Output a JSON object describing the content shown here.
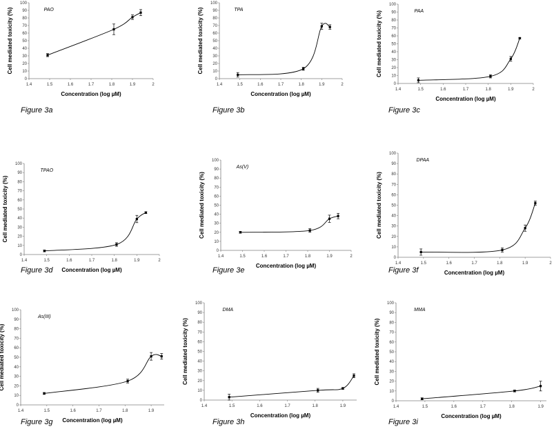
{
  "chart_data": [
    {
      "type": "line",
      "title": "PAO",
      "caption": "Figure 3a",
      "xlabel": "Concentration (log µM)",
      "ylabel": "Cell mediated toxicity (%)",
      "xlim": [
        1.4,
        2
      ],
      "ylim": [
        0,
        100
      ],
      "xticks": [
        "1.4",
        "1.5",
        "1.6",
        "1.7",
        "1.8",
        "1.9",
        "2"
      ],
      "yticks": [
        "0",
        "10",
        "20",
        "30",
        "40",
        "50",
        "60",
        "70",
        "80",
        "90",
        "100"
      ],
      "x": [
        1.49,
        1.81,
        1.9,
        1.94
      ],
      "values": [
        31,
        65,
        81,
        87
      ],
      "errors": [
        2,
        7,
        3,
        4
      ]
    },
    {
      "type": "line",
      "title": "TPA",
      "caption": "Figure 3b",
      "xlabel": "Concentration (log µM)",
      "ylabel": "Cell mediated toxicity (%)",
      "xlim": [
        1.4,
        2
      ],
      "ylim": [
        0,
        100
      ],
      "xticks": [
        "1.4",
        "1.5",
        "1.6",
        "1.7",
        "1.8",
        "1.9",
        "2"
      ],
      "yticks": [
        "0",
        "10",
        "20",
        "30",
        "40",
        "50",
        "60",
        "70",
        "80",
        "90",
        "100"
      ],
      "x": [
        1.49,
        1.81,
        1.9,
        1.94
      ],
      "values": [
        5,
        13,
        69,
        68
      ],
      "errors": [
        3,
        2,
        4,
        3
      ]
    },
    {
      "type": "line",
      "title": "PAA",
      "caption": "Figure 3c",
      "xlabel": "Concentration (log µM)",
      "ylabel": "Cell mediated toxicity (%)",
      "xlim": [
        1.4,
        2
      ],
      "ylim": [
        0,
        100
      ],
      "xticks": [
        "1.4",
        "1.5",
        "1.6",
        "1.7",
        "1.8",
        "1.9",
        "2"
      ],
      "yticks": [
        "0",
        "10",
        "20",
        "30",
        "40",
        "50",
        "60",
        "70",
        "80",
        "90",
        "100"
      ],
      "x": [
        1.49,
        1.81,
        1.9,
        1.94
      ],
      "values": [
        4,
        9,
        31,
        57
      ],
      "errors": [
        3,
        2,
        3,
        1
      ]
    },
    {
      "type": "line",
      "title": "TPAO",
      "caption": "Figure 3d",
      "xlabel": "Concentration (log µM)",
      "ylabel": "Cell mediated toxicity (%)",
      "xlim": [
        1.4,
        2
      ],
      "ylim": [
        0,
        100
      ],
      "xticks": [
        "1.4",
        "1.5",
        "1.6",
        "1.7",
        "1.8",
        "1.9",
        "2"
      ],
      "yticks": [
        "0",
        "10",
        "20",
        "30",
        "40",
        "50",
        "60",
        "70",
        "80",
        "90",
        "100"
      ],
      "x": [
        1.49,
        1.81,
        1.9,
        1.94
      ],
      "values": [
        4,
        11,
        39,
        46
      ],
      "errors": [
        1,
        2,
        4,
        1
      ]
    },
    {
      "type": "line",
      "title": "As(V)",
      "caption": "Figure 3e",
      "xlabel": "Concentration (log µM)",
      "ylabel": "Cell mediated toxicity (%)",
      "xlim": [
        1.4,
        2
      ],
      "ylim": [
        0,
        100
      ],
      "xticks": [
        "1.4",
        "1.5",
        "1.6",
        "1.7",
        "1.8",
        "1.9",
        "2"
      ],
      "yticks": [
        "0",
        "10",
        "20",
        "30",
        "40",
        "50",
        "60",
        "70",
        "80",
        "90",
        "100"
      ],
      "x": [
        1.49,
        1.81,
        1.9,
        1.94
      ],
      "values": [
        20,
        22,
        35,
        38
      ],
      "errors": [
        1,
        2,
        4,
        3
      ]
    },
    {
      "type": "line",
      "title": "DPAA",
      "caption": "Figure 3f",
      "xlabel": "Concentration (log µM)",
      "ylabel": "Cell mediated toxicity (%)",
      "xlim": [
        1.4,
        2
      ],
      "ylim": [
        0,
        100
      ],
      "xticks": [
        "1.4",
        "1.5",
        "1.6",
        "1.7",
        "1.8",
        "1.9",
        "2"
      ],
      "yticks": [
        "0",
        "10",
        "20",
        "30",
        "40",
        "50",
        "60",
        "70",
        "80",
        "90",
        "100"
      ],
      "x": [
        1.49,
        1.81,
        1.9,
        1.94
      ],
      "values": [
        5,
        7,
        28,
        52
      ],
      "errors": [
        3,
        2,
        3,
        2
      ]
    },
    {
      "type": "line",
      "title": "As(III)",
      "caption": "Figure 3g",
      "xlabel": "Concentration (log µM)",
      "ylabel": "Cell mediated toxicity (%)",
      "xlim": [
        1.4,
        1.95
      ],
      "ylim": [
        0,
        100
      ],
      "xticks": [
        "1.4",
        "1.5",
        "1.6",
        "1.7",
        "1.8",
        "1.9"
      ],
      "yticks": [
        "0",
        "10",
        "20",
        "30",
        "40",
        "50",
        "60",
        "70",
        "80",
        "90",
        "100"
      ],
      "x": [
        1.49,
        1.81,
        1.9,
        1.94
      ],
      "values": [
        12,
        25,
        51,
        51
      ],
      "errors": [
        1,
        2,
        4,
        3
      ]
    },
    {
      "type": "line",
      "title": "DMA",
      "caption": "Figure 3h",
      "xlabel": "Concentration (log µM)",
      "ylabel": "Cell mediated toxicity (%)",
      "xlim": [
        1.4,
        1.95
      ],
      "ylim": [
        0,
        100
      ],
      "xticks": [
        "1.4",
        "1.5",
        "1.6",
        "1.7",
        "1.8",
        "1.9"
      ],
      "yticks": [
        "0",
        "10",
        "20",
        "30",
        "40",
        "50",
        "60",
        "70",
        "80",
        "90",
        "100"
      ],
      "x": [
        1.49,
        1.81,
        1.9,
        1.94
      ],
      "values": [
        3,
        10,
        12,
        25
      ],
      "errors": [
        3,
        2,
        1,
        2
      ]
    },
    {
      "type": "line",
      "title": "MMA",
      "caption": "Figure 3i",
      "xlabel": "Concentration (log µM)",
      "ylabel": "Cell mediated toxicity (%)",
      "xlim": [
        1.4,
        1.92
      ],
      "ylim": [
        0,
        100
      ],
      "xticks": [
        "1.4",
        "1.5",
        "1.6",
        "1.7",
        "1.8",
        "1.9"
      ],
      "yticks": [
        "0",
        "10",
        "20",
        "30",
        "40",
        "50",
        "60",
        "70",
        "80",
        "90",
        "100"
      ],
      "x": [
        1.49,
        1.81,
        1.9
      ],
      "values": [
        2,
        10,
        15
      ],
      "errors": [
        1,
        1,
        5
      ]
    }
  ]
}
